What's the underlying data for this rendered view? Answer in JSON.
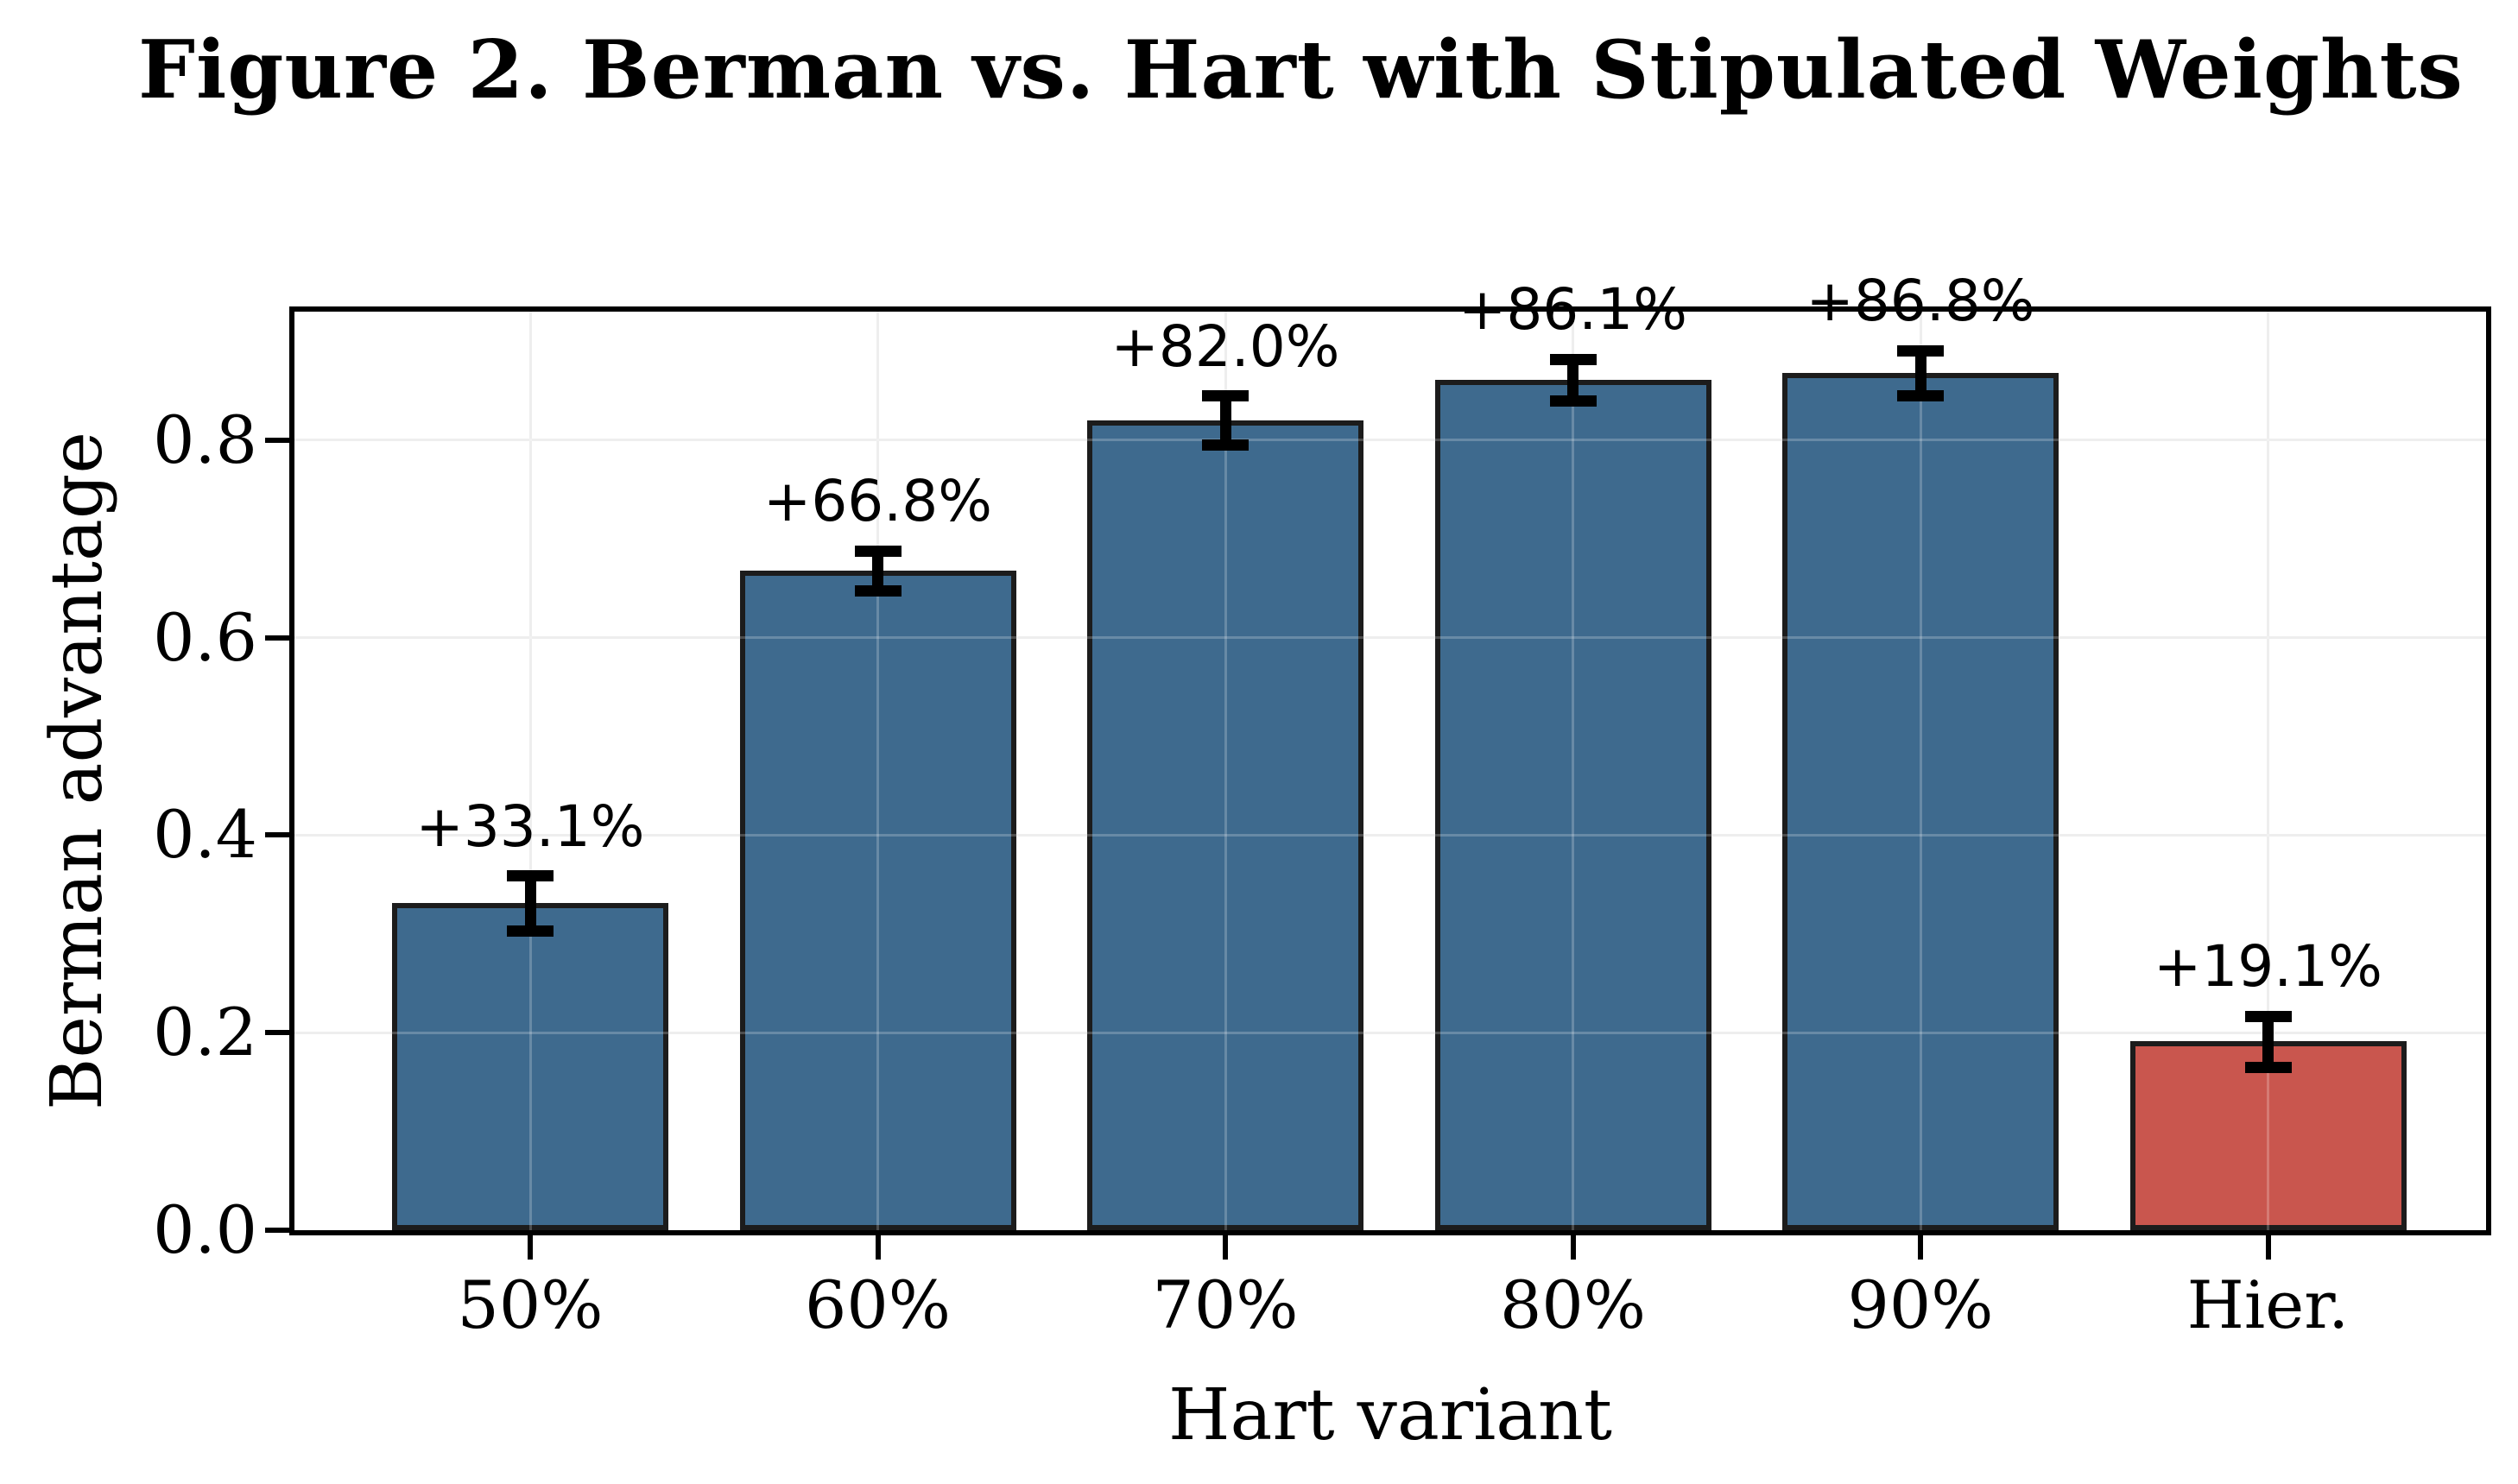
{
  "title": "Figure 2. Berman vs. Hart with Stipulated Weights",
  "chart_data": {
    "type": "bar",
    "title": "Figure 2. Berman vs. Hart with Stipulated Weights",
    "xlabel": "Hart variant",
    "ylabel": "Berman advantage",
    "categories": [
      "50%",
      "60%",
      "70%",
      "80%",
      "90%",
      "Hier."
    ],
    "values": [
      0.331,
      0.668,
      0.82,
      0.861,
      0.868,
      0.191
    ],
    "errors": [
      0.028,
      0.02,
      0.025,
      0.021,
      0.023,
      0.026
    ],
    "bar_labels": [
      "+33.1%",
      "+66.8%",
      "+82.0%",
      "+86.1%",
      "+86.8%",
      "+19.1%"
    ],
    "bar_colors": [
      "#3e6a8e",
      "#3e6a8e",
      "#3e6a8e",
      "#3e6a8e",
      "#3e6a8e",
      "#c9564e"
    ],
    "bar_edge_color": "#1c1c1c",
    "yticks": [
      0.0,
      0.2,
      0.4,
      0.6,
      0.8
    ],
    "ytick_labels": [
      "0.0",
      "0.2",
      "0.4",
      "0.6",
      "0.8"
    ],
    "ylim": [
      0,
      0.93
    ],
    "grid": true,
    "grid_color": "#e9e9e9",
    "legend": "none"
  },
  "colors": {
    "background": "#ffffff",
    "blue_bar": "#3e6a8e",
    "red_bar": "#c9564e",
    "spine": "#000000",
    "grid": "#e9e9e9"
  }
}
